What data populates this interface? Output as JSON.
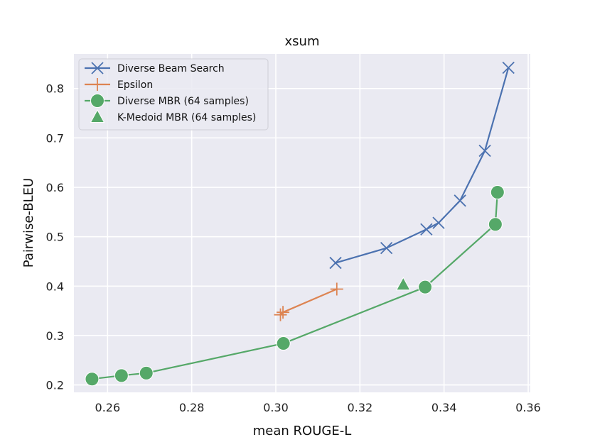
{
  "chart_data": {
    "type": "line",
    "title": "xsum",
    "xlabel": "mean ROUGE-L",
    "ylabel": "Pairwise-BLEU",
    "xlim": [
      0.252,
      0.3605
    ],
    "ylim": [
      0.185,
      0.87
    ],
    "xticks": [
      0.26,
      0.28,
      0.3,
      0.32,
      0.34,
      0.36
    ],
    "xtick_labels": [
      "0.26",
      "0.28",
      "0.30",
      "0.32",
      "0.34",
      "0.36"
    ],
    "yticks": [
      0.2,
      0.3,
      0.4,
      0.5,
      0.6,
      0.7,
      0.8
    ],
    "ytick_labels": [
      "0.2",
      "0.3",
      "0.4",
      "0.5",
      "0.6",
      "0.7",
      "0.8"
    ],
    "grid": true,
    "legend_position": "top-left",
    "series": [
      {
        "name": "Diverse Beam Search",
        "color": "#4c72b0",
        "marker": "x",
        "line": true,
        "x": [
          0.3142,
          0.3263,
          0.3358,
          0.3387,
          0.3438,
          0.3497,
          0.3553
        ],
        "y": [
          0.447,
          0.477,
          0.515,
          0.528,
          0.573,
          0.674,
          0.842
        ]
      },
      {
        "name": "Epsilon",
        "color": "#dd8452",
        "marker": "plus",
        "line": true,
        "x": [
          0.3011,
          0.3017,
          0.3145
        ],
        "y": [
          0.342,
          0.347,
          0.394
        ]
      },
      {
        "name": "Diverse MBR (64 samples)",
        "color": "#55a868",
        "marker": "circle",
        "line": true,
        "x": [
          0.2563,
          0.2633,
          0.2692,
          0.3018,
          0.3355,
          0.3522,
          0.3527
        ],
        "y": [
          0.212,
          0.219,
          0.224,
          0.284,
          0.398,
          0.525,
          0.59
        ]
      },
      {
        "name": "K-Medoid MBR (64 samples)",
        "color": "#55a868",
        "marker": "triangle",
        "line": false,
        "x": [
          0.3303
        ],
        "y": [
          0.403
        ]
      }
    ]
  }
}
